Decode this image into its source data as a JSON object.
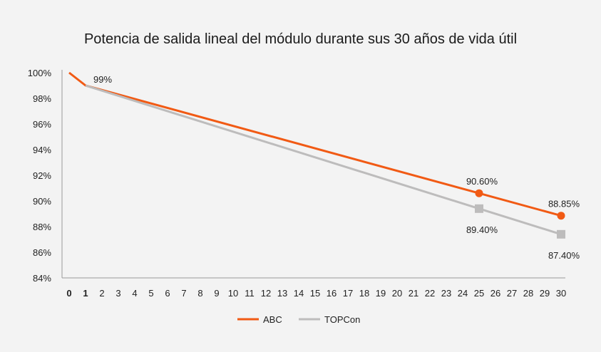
{
  "chart_data": {
    "type": "line",
    "title": "Potencia de salida lineal del módulo durante sus 30 años de vida útil",
    "xlabel": "",
    "ylabel": "",
    "x": [
      0,
      1,
      2,
      3,
      4,
      5,
      6,
      7,
      8,
      9,
      10,
      11,
      12,
      13,
      14,
      15,
      16,
      17,
      18,
      19,
      20,
      21,
      22,
      23,
      24,
      25,
      26,
      27,
      28,
      29,
      30
    ],
    "xlim": [
      0,
      30
    ],
    "ylim": [
      84,
      100
    ],
    "yticks": [
      100,
      98,
      96,
      94,
      92,
      90,
      88,
      86,
      84
    ],
    "ytick_labels": [
      "100%",
      "98%",
      "96%",
      "94%",
      "92%",
      "90%",
      "88%",
      "86%",
      "84%"
    ],
    "grid": false,
    "legend_position": "bottom-center",
    "series": [
      {
        "name": "ABC",
        "color": "#f15a14",
        "marker": "circle",
        "points": [
          [
            0,
            100
          ],
          [
            1,
            99
          ],
          [
            25,
            90.6
          ],
          [
            30,
            88.85
          ]
        ],
        "marked_points": [
          [
            25,
            90.6
          ],
          [
            30,
            88.85
          ]
        ],
        "labels": [
          {
            "x": 1,
            "y": 99,
            "text": "99%"
          },
          {
            "x": 25,
            "y": 90.6,
            "text": "90.60%"
          },
          {
            "x": 30,
            "y": 88.85,
            "text": "88.85%"
          }
        ]
      },
      {
        "name": "TOPCon",
        "color": "#bdbcbc",
        "marker": "square",
        "points": [
          [
            1,
            99
          ],
          [
            25,
            89.4
          ],
          [
            30,
            87.4
          ]
        ],
        "marked_points": [
          [
            25,
            89.4
          ],
          [
            30,
            87.4
          ]
        ],
        "labels": [
          {
            "x": 25,
            "y": 89.4,
            "text": "89.40%"
          },
          {
            "x": 30,
            "y": 87.4,
            "text": "87.40%"
          }
        ]
      }
    ]
  }
}
